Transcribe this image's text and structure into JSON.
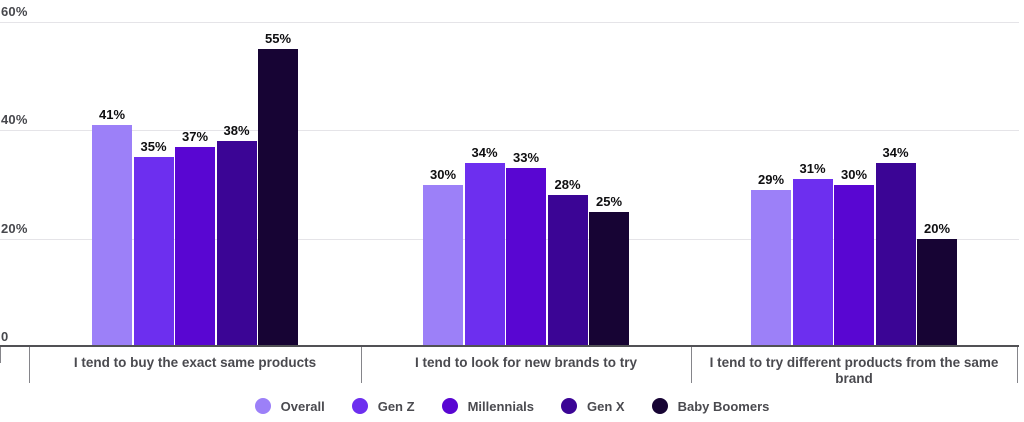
{
  "chart_data": {
    "type": "bar",
    "title": "",
    "categories": [
      "I tend to buy the exact same products",
      "I tend to look for new brands to try",
      "I tend to try different products from the same brand"
    ],
    "series": [
      {
        "name": "Overall",
        "color": "#9c80f8",
        "values": [
          41,
          30,
          29
        ]
      },
      {
        "name": "Gen Z",
        "color": "#6d2fef",
        "values": [
          35,
          34,
          31
        ]
      },
      {
        "name": "Millennials",
        "color": "#5906d2",
        "values": [
          37,
          33,
          30
        ]
      },
      {
        "name": "Gen X",
        "color": "#3b0595",
        "values": [
          38,
          28,
          34
        ]
      },
      {
        "name": "Baby Boomers",
        "color": "#170434",
        "values": [
          55,
          25,
          20
        ]
      }
    ],
    "value_suffix": "%",
    "yticks": [
      {
        "value": 0,
        "label": "0"
      },
      {
        "value": 20,
        "label": "20%"
      },
      {
        "value": 40,
        "label": "40%"
      },
      {
        "value": 60,
        "label": "60%"
      }
    ],
    "ylim": [
      0,
      60
    ],
    "grid": true,
    "legend_position": "bottom"
  },
  "colors": {
    "background": "#ffffff",
    "gridline": "#e5e4e8",
    "axis_line": "#515155",
    "tick_line": "#85858a",
    "y_label": "#47484d",
    "value_label": "#0e0e10",
    "category_label": "#4a4a4f",
    "legend_label": "#4a4a4f"
  }
}
